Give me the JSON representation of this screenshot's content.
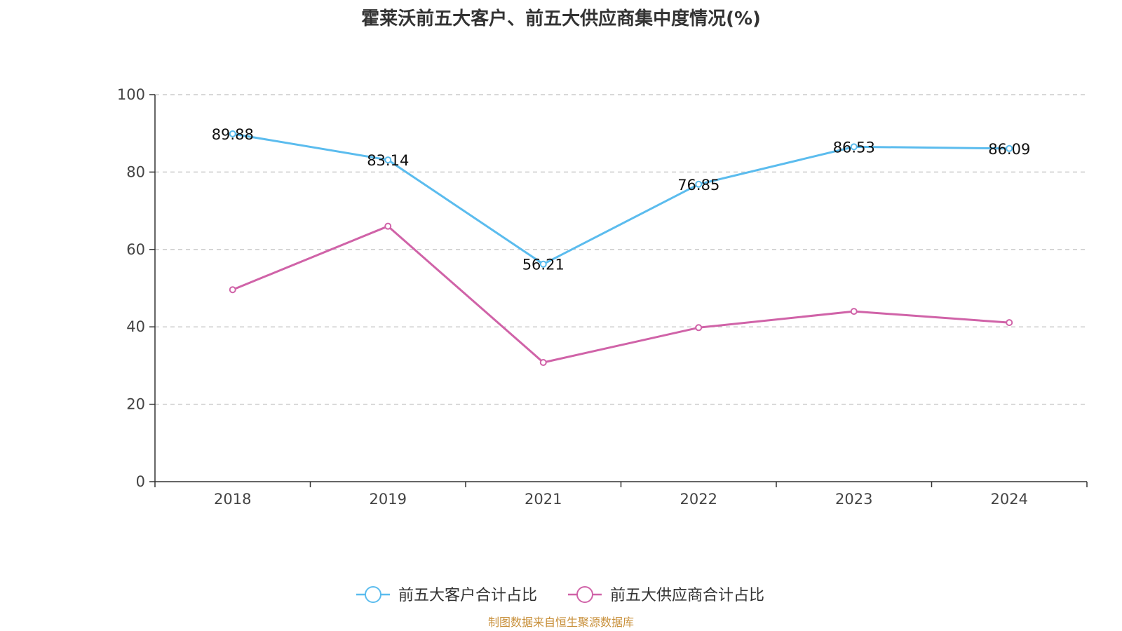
{
  "chart_data": {
    "type": "line",
    "title": "霍莱沃前五大客户、前五大供应商集中度情况(%)",
    "categories": [
      "2018",
      "2019",
      "2021",
      "2022",
      "2023",
      "2024"
    ],
    "ylim": [
      0,
      100
    ],
    "yticks": [
      0,
      20,
      40,
      60,
      80,
      100
    ],
    "grid": true,
    "legend_position": "bottom",
    "series": [
      {
        "name": "前五大客户合计占比",
        "values": [
          89.88,
          83.14,
          56.21,
          76.85,
          86.53,
          86.09
        ],
        "labels": [
          "89.88",
          "83.14",
          "56.21",
          "76.85",
          "86.53",
          "86.09"
        ],
        "color": "#5bbcee"
      },
      {
        "name": "前五大供应商合计占比",
        "values": [
          49.6,
          66.0,
          30.8,
          39.8,
          44.0,
          41.1
        ],
        "color": "#d063a8"
      }
    ]
  },
  "footer": {
    "source": "制图数据来自恒生聚源数据库"
  }
}
